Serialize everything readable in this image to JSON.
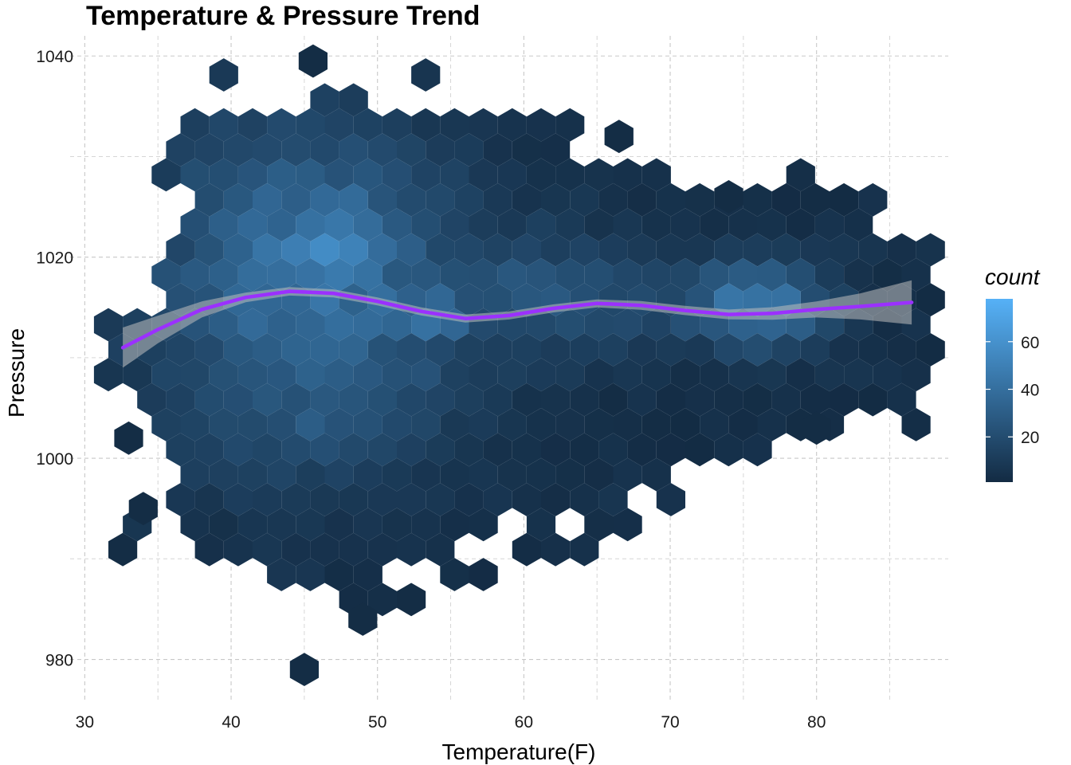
{
  "chart_data": {
    "type": "hexbin",
    "title": "Temperature & Pressure Trend",
    "xlabel": "Temperature(F)",
    "ylabel": "Pressure",
    "xlim": [
      29,
      89
    ],
    "ylim": [
      976,
      1042
    ],
    "x_ticks": [
      30,
      40,
      50,
      60,
      70,
      80
    ],
    "y_ticks": [
      980,
      1000,
      1020,
      1040
    ],
    "grid": true,
    "legend": {
      "title": "count",
      "placement": "right",
      "ticks": [
        20,
        40,
        60
      ],
      "range": [
        1,
        78
      ],
      "color_low": "#132B43",
      "color_high": "#56B1F7"
    },
    "smooth_line": {
      "color": "#9B30FF",
      "points": [
        [
          32.6,
          1011.0
        ],
        [
          35,
          1012.8
        ],
        [
          38,
          1014.8
        ],
        [
          41,
          1016.0
        ],
        [
          44,
          1016.6
        ],
        [
          47,
          1016.4
        ],
        [
          50,
          1015.6
        ],
        [
          53,
          1014.6
        ],
        [
          56,
          1013.9
        ],
        [
          59,
          1014.2
        ],
        [
          62,
          1014.9
        ],
        [
          65,
          1015.4
        ],
        [
          68,
          1015.2
        ],
        [
          71,
          1014.7
        ],
        [
          74,
          1014.3
        ],
        [
          77,
          1014.4
        ],
        [
          80,
          1014.8
        ],
        [
          83,
          1015.1
        ],
        [
          86.5,
          1015.5
        ]
      ],
      "band_halfwidth": [
        [
          32.6,
          2.0
        ],
        [
          36,
          1.1
        ],
        [
          40,
          0.5
        ],
        [
          45,
          0.4
        ],
        [
          55,
          0.4
        ],
        [
          65,
          0.4
        ],
        [
          75,
          0.5
        ],
        [
          80,
          0.8
        ],
        [
          83,
          1.3
        ],
        [
          86.5,
          2.2
        ]
      ]
    },
    "hexbin_clusters": [
      {
        "x": 45,
        "y": 1018,
        "sx": 7.5,
        "sy": 11,
        "peak": 34
      },
      {
        "x": 47,
        "y": 1021,
        "sx": 3,
        "sy": 3,
        "peak": 14
      },
      {
        "x": 63,
        "y": 1016,
        "sx": 5,
        "sy": 4,
        "peak": 20
      },
      {
        "x": 76,
        "y": 1015,
        "sx": 3.5,
        "sy": 3,
        "peak": 40
      },
      {
        "x": 54,
        "y": 1014,
        "sx": 1.5,
        "sy": 1.5,
        "peak": 18
      },
      {
        "x": 45,
        "y": 1003,
        "sx": 6,
        "sy": 5,
        "peak": 8
      }
    ]
  }
}
